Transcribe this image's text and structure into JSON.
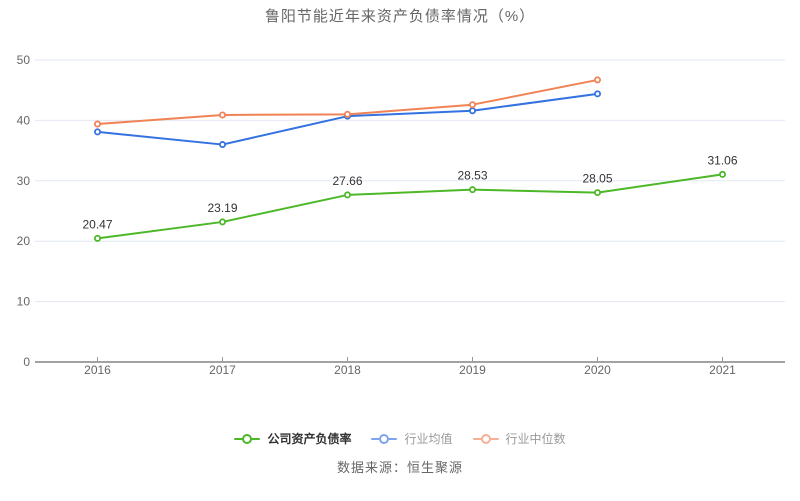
{
  "title": "鲁阳节能近年来资产负债率情况（%）",
  "footer": {
    "source": "数据来源：恒生聚源"
  },
  "colors": {
    "company_line": "#4cb828",
    "industry_mean_line": "#3372e0",
    "industry_median_line": "#f08255",
    "legend_mean_faded": "#7ea4ee",
    "legend_median_faded": "#f5b096",
    "grid_line": "#e2e8f2",
    "axis_line": "#444444",
    "tick_mark": "#999999",
    "axis_text": "#666666",
    "data_label_text": "#333333",
    "title_text": "#666666",
    "background": "#ffffff"
  },
  "legend": {
    "items": [
      {
        "label": "公司资产负债率",
        "marker_color": "#4cb828",
        "text_color": "#333333",
        "emphasis": true
      },
      {
        "label": "行业均值",
        "marker_color": "#7ea4ee",
        "text_color": "#999999",
        "emphasis": false
      },
      {
        "label": "行业中位数",
        "marker_color": "#f5b096",
        "text_color": "#999999",
        "emphasis": false
      }
    ]
  },
  "chart_data": {
    "type": "line",
    "title": "鲁阳节能近年来资产负债率情况（%）",
    "categories": [
      "2016",
      "2017",
      "2018",
      "2019",
      "2020",
      "2021"
    ],
    "series": [
      {
        "name": "公司资产负债率",
        "color": "#4cb828",
        "values": [
          20.47,
          23.19,
          27.66,
          28.53,
          28.05,
          31.06
        ],
        "data_labels": true,
        "estimated": false
      },
      {
        "name": "行业均值",
        "color": "#3372e0",
        "values": [
          38.1,
          36.0,
          40.7,
          41.6,
          44.4,
          null
        ],
        "data_labels": false,
        "estimated": true
      },
      {
        "name": "行业中位数",
        "color": "#f08255",
        "values": [
          39.4,
          40.9,
          41.0,
          42.6,
          46.7,
          null
        ],
        "data_labels": false,
        "estimated": true
      }
    ],
    "xlabel": "",
    "ylabel": "",
    "ylim": [
      0,
      50
    ],
    "yticks": [
      0,
      10,
      20,
      30,
      40,
      50
    ],
    "grid": true,
    "legend_position": "bottom",
    "marker_style": "hollow-circle"
  }
}
